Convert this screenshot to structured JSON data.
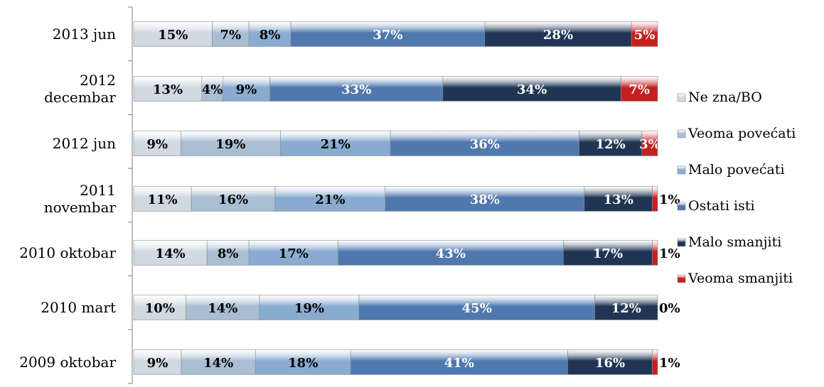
{
  "chart_data": {
    "type": "bar",
    "orientation": "horizontal",
    "stacked": true,
    "percent_stacked": true,
    "categories": [
      [
        "2013 jun"
      ],
      [
        "2012",
        "decembar"
      ],
      [
        "2012 jun"
      ],
      [
        "2011",
        "novembar"
      ],
      [
        "2010 oktobar"
      ],
      [
        "2010 mart"
      ],
      [
        "2009 oktobar"
      ]
    ],
    "series": [
      {
        "name": "Ne zna/BO",
        "values": [
          15,
          13,
          9,
          11,
          14,
          10,
          9
        ]
      },
      {
        "name": "Veoma povećati",
        "values": [
          7,
          4,
          19,
          16,
          8,
          14,
          14
        ]
      },
      {
        "name": "Malo povećati",
        "values": [
          8,
          9,
          21,
          21,
          17,
          19,
          18
        ]
      },
      {
        "name": "Ostati isti",
        "values": [
          37,
          33,
          36,
          38,
          43,
          45,
          41
        ]
      },
      {
        "name": "Malo smanjiti",
        "values": [
          28,
          34,
          12,
          13,
          17,
          12,
          16
        ]
      },
      {
        "name": "Veoma smanjiti",
        "values": [
          5,
          7,
          3,
          1,
          1,
          0,
          1
        ]
      }
    ],
    "value_suffix": "%",
    "colors": [
      "#d0d8e2",
      "#a9bdd3",
      "#8aabd0",
      "#4f78ae",
      "#1f3553",
      "#c42020"
    ],
    "label_colors": [
      "#000000",
      "#000000",
      "#000000",
      "#ffffff",
      "#ffffff",
      "#ffffff"
    ],
    "legend_position": "right",
    "grid": false
  }
}
